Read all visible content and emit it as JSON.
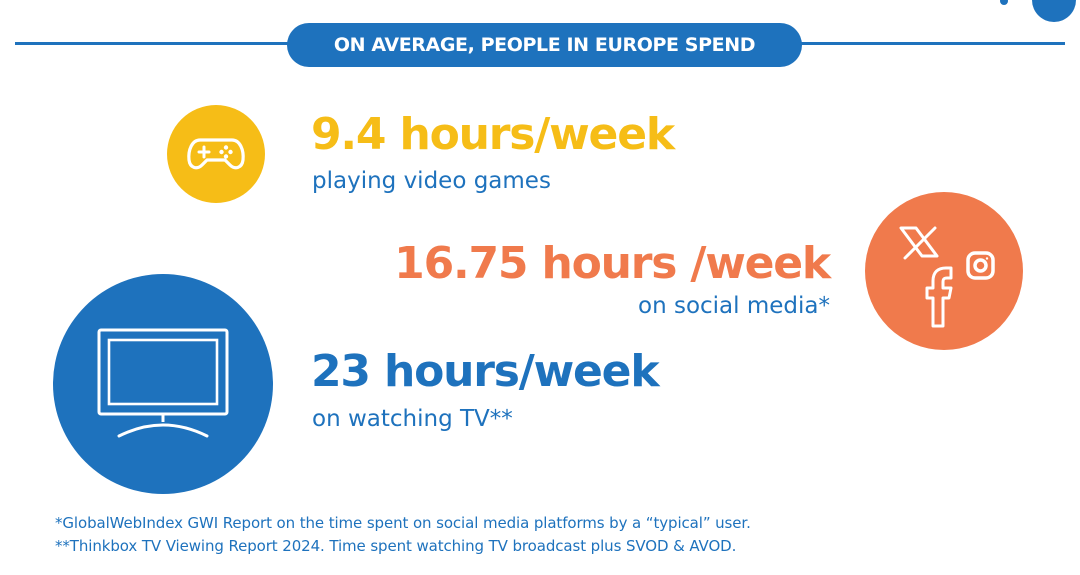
{
  "banner": {
    "title": "ON AVERAGE, PEOPLE IN EUROPE SPEND"
  },
  "stats": [
    {
      "value": "9.4 hours/week",
      "caption": "playing video games",
      "color": "#f6bd17",
      "icon": "gamepad-icon"
    },
    {
      "value": "16.75 hours /week",
      "caption": "on social media*",
      "color": "#f07a4c",
      "icon": "social-media-icons"
    },
    {
      "value": "23 hours/week",
      "caption": "on watching TV**",
      "color": "#1e72bd",
      "icon": "tv-icon"
    }
  ],
  "footnotes": [
    "*GlobalWebIndex GWI Report on the time spent on social media platforms by a “typical” user.",
    "**Thinkbox TV Viewing Report 2024. Time spent watching TV broadcast plus SVOD & AVOD."
  ],
  "colors": {
    "primary": "#1e72bd",
    "yellow": "#f6bd17",
    "orange": "#f07a4c"
  }
}
